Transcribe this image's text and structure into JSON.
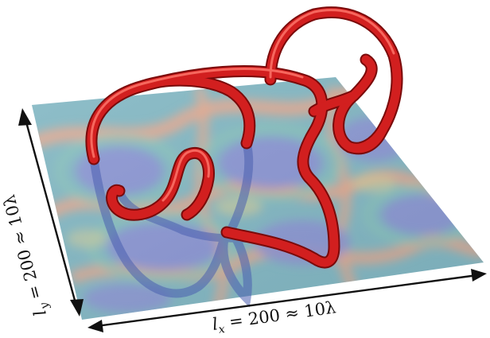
{
  "figure": {
    "x_extent": {
      "symbol": "l",
      "subscript": "x",
      "relation": " = 200 ≈ 10λ"
    },
    "y_extent": {
      "symbol": "l",
      "subscript": "y",
      "relation": " = 200 ≈ 10λ"
    },
    "colors": {
      "knot_tube": "#d21f1f",
      "knot_tube_dark": "#8e0d0d",
      "knot_tube_highlight": "#ff7a6e",
      "plane_base": "#7fb4c8",
      "plane_blue": "#8d94d6",
      "plane_teal": "#8cc7b9",
      "plane_orange": "#e7a98f",
      "plane_yellow": "#d7cf9a",
      "arrow": "#111111"
    }
  }
}
